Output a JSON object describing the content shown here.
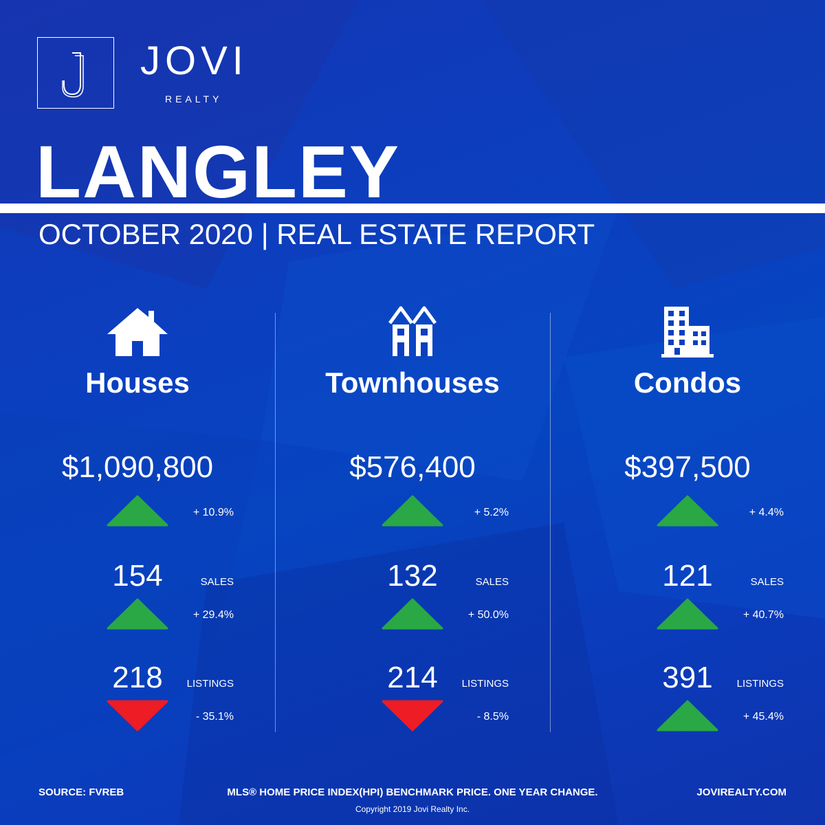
{
  "brand": {
    "name": "JOVI",
    "sub": "REALTY",
    "logo_letter": "J"
  },
  "title": {
    "city": "LANGLEY",
    "subtitle": "OCTOBER 2020 | REAL ESTATE REPORT"
  },
  "colors": {
    "background": "#0b3fbf",
    "up": "#2aa845",
    "down": "#ee1c24",
    "text": "#ffffff"
  },
  "columns": [
    {
      "icon": "house-icon",
      "type": "Houses",
      "price": "$1,090,800",
      "price_change": {
        "direction": "up",
        "text": "+ 10.9%"
      },
      "sales": {
        "value": "154",
        "label": "SALES",
        "direction": "up",
        "change": "+ 29.4%"
      },
      "listings": {
        "value": "218",
        "label": "LISTINGS",
        "direction": "down",
        "change": "- 35.1%"
      }
    },
    {
      "icon": "townhouse-icon",
      "type": "Townhouses",
      "price": "$576,400",
      "price_change": {
        "direction": "up",
        "text": "+ 5.2%"
      },
      "sales": {
        "value": "132",
        "label": "SALES",
        "direction": "up",
        "change": "+ 50.0%"
      },
      "listings": {
        "value": "214",
        "label": "LISTINGS",
        "direction": "down",
        "change": "- 8.5%"
      }
    },
    {
      "icon": "condo-building-icon",
      "type": "Condos",
      "price": "$397,500",
      "price_change": {
        "direction": "up",
        "text": "+ 4.4%"
      },
      "sales": {
        "value": "121",
        "label": "SALES",
        "direction": "up",
        "change": "+ 40.7%"
      },
      "listings": {
        "value": "391",
        "label": "LISTINGS",
        "direction": "up",
        "change": "+ 45.4%"
      }
    }
  ],
  "footer": {
    "source": "SOURCE:  FVREB",
    "note": "MLS® HOME PRICE INDEX(HPI) BENCHMARK PRICE. ONE YEAR CHANGE.",
    "site": "JOVIREALTY.COM",
    "copyright": "Copyright 2019 Jovi Realty Inc."
  }
}
